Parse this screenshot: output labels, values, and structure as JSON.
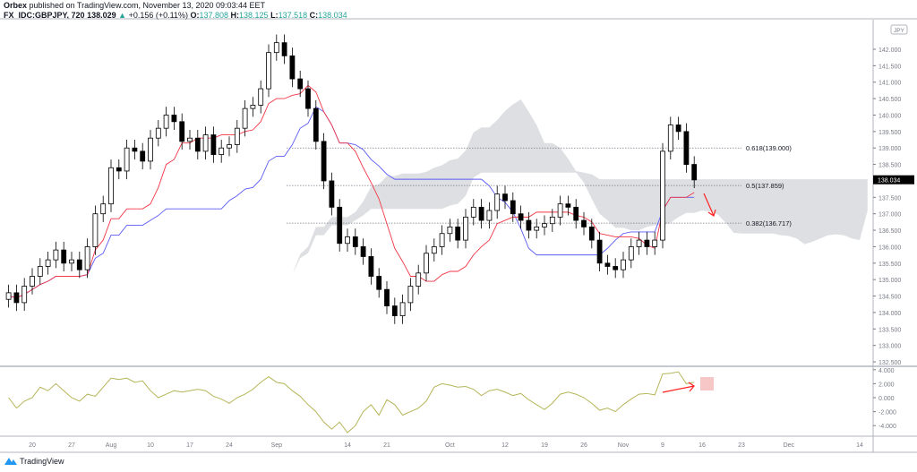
{
  "header": {
    "publisher": "Orbex",
    "published_text": "published on TradingView.com, November 13, 2020 09:03:44 EET",
    "symbol": "FX_IDC:GBPJPY, 720",
    "last": "138.029",
    "change": "+0.156 (+0.11%)",
    "o_label": "O:",
    "o": "137.808",
    "h_label": "H:",
    "h": "138.125",
    "l_label": "L:",
    "l": "137.518",
    "c_label": "C:",
    "c": "138.034"
  },
  "footer": {
    "brand": "TradingView"
  },
  "colors": {
    "up": "#ffffff",
    "down": "#000000",
    "tenkan": "#f23645",
    "kijun": "#5b5bf5",
    "cloud": "#d8d9dd",
    "oscillator": "#b5b558",
    "annotation": "#ff2020",
    "box": "#f7c6c6",
    "price_tag": "#000000"
  },
  "chart_data": {
    "type": "candlestick",
    "symbol": "GBPJPY",
    "currency": "JPY",
    "timeframe": "720",
    "price_ylim": [
      132.2,
      142.9
    ],
    "price_ticks": [
      "142.000",
      "141.500",
      "141.000",
      "140.500",
      "140.000",
      "139.500",
      "139.000",
      "138.500",
      "137.500",
      "137.000",
      "136.500",
      "136.000",
      "135.500",
      "135.000",
      "134.500",
      "134.000",
      "133.500",
      "133.000",
      "132.500"
    ],
    "last_price_label": "138.034",
    "last_price": 138.034,
    "dates": [
      "2020-07-15",
      "2020-07-16",
      "2020-07-17",
      "2020-07-20",
      "2020-07-21",
      "2020-07-22",
      "2020-07-23",
      "2020-07-24",
      "2020-07-27",
      "2020-07-28",
      "2020-07-29",
      "2020-07-30",
      "2020-07-31",
      "2020-08-03",
      "2020-08-04",
      "2020-08-05",
      "2020-08-06",
      "2020-08-07",
      "2020-08-10",
      "2020-08-11",
      "2020-08-12",
      "2020-08-13",
      "2020-08-14",
      "2020-08-17",
      "2020-08-18",
      "2020-08-19",
      "2020-08-20",
      "2020-08-21",
      "2020-08-24",
      "2020-08-25",
      "2020-08-26",
      "2020-08-27",
      "2020-08-28",
      "2020-08-31",
      "2020-09-01",
      "2020-09-02",
      "2020-09-03",
      "2020-09-04",
      "2020-09-07",
      "2020-09-08",
      "2020-09-09",
      "2020-09-10",
      "2020-09-11",
      "2020-09-14",
      "2020-09-15",
      "2020-09-16",
      "2020-09-17",
      "2020-09-18",
      "2020-09-21",
      "2020-09-22",
      "2020-09-23",
      "2020-09-24",
      "2020-09-25",
      "2020-09-28",
      "2020-09-29",
      "2020-09-30",
      "2020-10-01",
      "2020-10-02",
      "2020-10-05",
      "2020-10-06",
      "2020-10-07",
      "2020-10-08",
      "2020-10-09",
      "2020-10-12",
      "2020-10-13",
      "2020-10-14",
      "2020-10-15",
      "2020-10-16",
      "2020-10-19",
      "2020-10-20",
      "2020-10-21",
      "2020-10-22",
      "2020-10-23",
      "2020-10-26",
      "2020-10-27",
      "2020-10-28",
      "2020-10-29",
      "2020-10-30",
      "2020-11-02",
      "2020-11-03",
      "2020-11-04",
      "2020-11-05",
      "2020-11-06",
      "2020-11-09",
      "2020-11-10",
      "2020-11-11",
      "2020-11-12",
      "2020-11-13"
    ],
    "close": [
      134.6,
      134.3,
      134.8,
      135.1,
      135.4,
      135.6,
      135.9,
      135.5,
      135.6,
      135.3,
      136.0,
      137.0,
      137.3,
      138.4,
      138.3,
      139.0,
      138.9,
      138.6,
      139.3,
      139.6,
      140.0,
      139.8,
      139.2,
      139.3,
      138.9,
      139.4,
      138.8,
      139.0,
      139.1,
      139.6,
      140.2,
      140.3,
      140.8,
      141.9,
      142.2,
      141.8,
      141.1,
      140.8,
      140.2,
      139.2,
      138.0,
      137.2,
      136.1,
      136.3,
      136.0,
      135.7,
      135.1,
      134.7,
      134.2,
      133.9,
      134.3,
      134.8,
      135.2,
      135.8,
      136.0,
      136.4,
      136.6,
      136.2,
      136.9,
      137.2,
      136.8,
      137.1,
      137.6,
      137.4,
      137.0,
      136.8,
      136.5,
      136.6,
      136.7,
      136.9,
      137.3,
      137.2,
      136.8,
      136.6,
      136.2,
      135.5,
      135.4,
      135.3,
      135.6,
      136.0,
      136.2,
      136.0,
      136.2,
      138.9,
      139.7,
      139.5,
      138.5,
      138.03
    ],
    "oscillator": {
      "ticks": [
        "4.000",
        "2.000",
        "0.000",
        "-2.000",
        "-4.000"
      ],
      "ylim": [
        -5.6,
        4.2
      ],
      "values": [
        0,
        -1.5,
        -0.5,
        0,
        1.5,
        1.0,
        2.0,
        1.0,
        0,
        -0.5,
        0.5,
        0.2,
        1.5,
        2.8,
        2.6,
        2.8,
        2.2,
        2.4,
        1.0,
        0,
        0.5,
        1.0,
        0.8,
        1.0,
        1.2,
        1.0,
        0.2,
        -0.2,
        -0.8,
        0,
        0.5,
        1.2,
        2.2,
        3.0,
        2.2,
        2.0,
        1.0,
        0.2,
        -1.0,
        -2.0,
        -3.5,
        -4.5,
        -3.5,
        -5.0,
        -4.0,
        -2.0,
        -1.0,
        -2.5,
        -0.3,
        -1.0,
        -2.5,
        -2.0,
        -1.5,
        -0.5,
        1.5,
        2.0,
        1.8,
        1.5,
        1.6,
        1.2,
        0.3,
        1.0,
        1.2,
        0.8,
        0.3,
        0.6,
        -0.3,
        -1.0,
        -1.7,
        -0.8,
        0.5,
        0.8,
        0.5,
        0,
        -0.8,
        -1.8,
        -1.5,
        -2.0,
        -1.0,
        -0.2,
        0.5,
        0.6,
        0.4,
        3.4,
        3.5,
        3.7,
        2.0,
        2.2
      ]
    },
    "fib_levels": [
      {
        "label": "0.618(139.000)",
        "price": 139.0
      },
      {
        "label": "0.5(137.859)",
        "price": 137.859
      },
      {
        "label": "0.382(136.717)",
        "price": 136.717
      }
    ],
    "x_labels": [
      {
        "text": "20",
        "date": "2020-07-20"
      },
      {
        "text": "27",
        "date": "2020-07-27"
      },
      {
        "text": "Aug",
        "date": "2020-08-03"
      },
      {
        "text": "10",
        "date": "2020-08-10"
      },
      {
        "text": "17",
        "date": "2020-08-17"
      },
      {
        "text": "24",
        "date": "2020-08-24"
      },
      {
        "text": "Sep",
        "date": "2020-09-01"
      },
      {
        "text": "14",
        "date": "2020-09-14"
      },
      {
        "text": "21",
        "date": "2020-09-21"
      },
      {
        "text": "Oct",
        "date": "2020-10-01"
      },
      {
        "text": "12",
        "date": "2020-10-12"
      },
      {
        "text": "19",
        "date": "2020-10-19"
      },
      {
        "text": "26",
        "date": "2020-10-26"
      },
      {
        "text": "Nov",
        "date": "2020-11-02"
      },
      {
        "text": "9",
        "date": "2020-11-09"
      },
      {
        "text": "16",
        "date": "2020-11-16"
      },
      {
        "text": "23",
        "date": "2020-11-23"
      },
      {
        "text": "Dec",
        "date": "2020-12-01"
      },
      {
        "text": "14",
        "date": "2020-12-14"
      }
    ],
    "indicators": [
      "Ichimoku Cloud (tenkan, kijun, cloud)",
      "oscillator"
    ],
    "grid": false
  }
}
